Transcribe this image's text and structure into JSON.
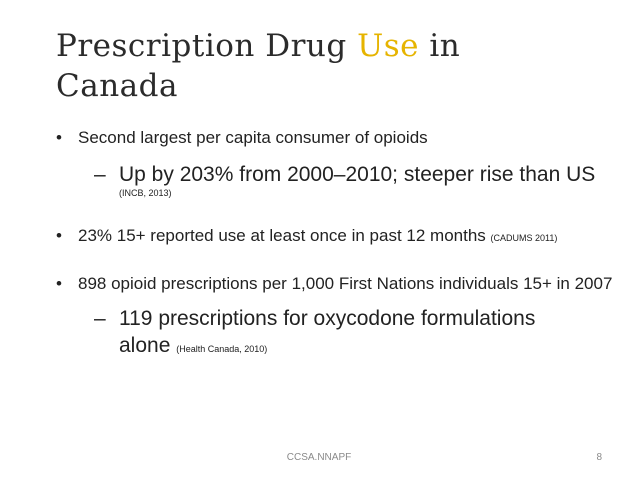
{
  "title": {
    "part1": "Prescription Drug ",
    "accent": "Use",
    "part2": " in",
    "line2": "Canada",
    "accent_color": "#e6b400"
  },
  "bullets": [
    {
      "text": "Second largest per capita consumer of opioids",
      "sub": {
        "text": "Up by 203% from 2000–2010; steeper rise than US",
        "cite": "(INCB, 2013)"
      }
    },
    {
      "text": "23% 15+ reported use at least once in past 12 months",
      "cite": "(CADUMS 2011)"
    },
    {
      "text": "898 opioid prescriptions per 1,000 First Nations individuals 15+ in 2007",
      "sub": {
        "text": "119 prescriptions for oxycodone formulations alone",
        "cite": "(Health Canada, 2010)"
      }
    }
  ],
  "markers": {
    "bullet": "•",
    "dash": "–"
  },
  "footer": {
    "center": "CCSA.NNAPF",
    "page": "8"
  }
}
